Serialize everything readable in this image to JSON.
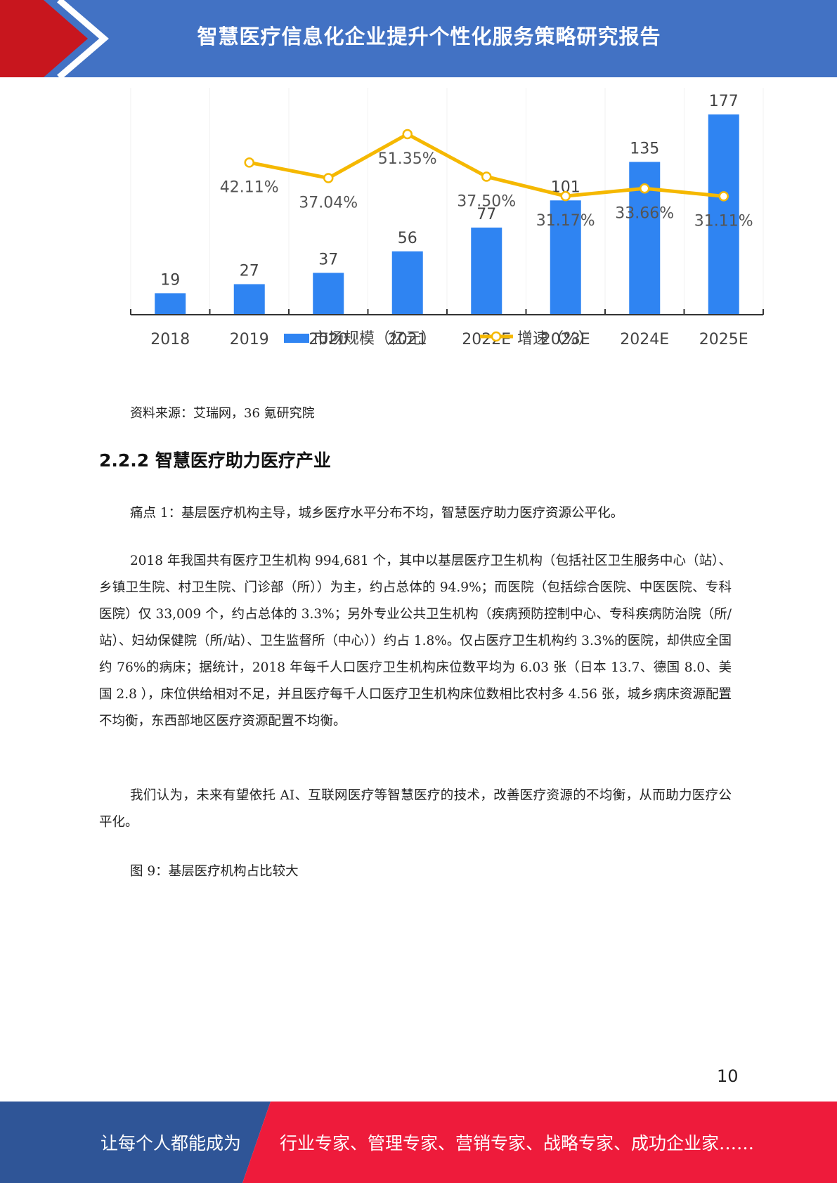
{
  "header": {
    "title": "智慧医疗信息化企业提升个性化服务策略研究报告",
    "bg_color": "#4272c4",
    "accent_color": "#c8161e"
  },
  "chart_data": {
    "type": "bar+line",
    "categories": [
      "2018",
      "2019",
      "2020",
      "2021",
      "2022E",
      "2023E",
      "2024E",
      "2025E"
    ],
    "series": [
      {
        "name": "市场规模（亿元）",
        "type": "bar",
        "color": "#2f84f2",
        "values": [
          19,
          27,
          37,
          56,
          77,
          101,
          135,
          177
        ],
        "labels": [
          "19",
          "27",
          "37",
          "56",
          "77",
          "101",
          "135",
          "177"
        ]
      },
      {
        "name": "增速（%）",
        "type": "line",
        "color": "#f5b800",
        "values": [
          null,
          42.11,
          37.04,
          51.35,
          37.5,
          31.17,
          33.66,
          31.11
        ],
        "labels": [
          "",
          "42.11%",
          "37.04%",
          "51.35%",
          "37.50%",
          "31.17%",
          "33.66%",
          "31.11%"
        ]
      }
    ],
    "ylim": [
      0,
      180
    ],
    "legend_position": "bottom"
  },
  "source": "资料来源：艾瑞网，36 氪研究院",
  "section": {
    "number": "2.2.2",
    "title": "智慧医疗助力医疗产业"
  },
  "paragraphs": [
    "痛点 1：基层医疗机构主导，城乡医疗水平分布不均，智慧医疗助力医疗资源公平化。",
    "2018 年我国共有医疗卫生机构 994,681 个，其中以基层医疗卫生机构（包括社区卫生服务中心（站）、乡镇卫生院、村卫生院、门诊部（所））为主，约占总体的 94.9%；而医院（包括综合医院、中医医院、专科医院）仅 33,009 个，约占总体的 3.3%；另外专业公共卫生机构（疾病预防控制中心、专科疾病防治院（所/站）、妇幼保健院（所/站）、卫生监督所（中心））约占 1.8%。仅占医疗卫生机构约 3.3%的医院，却供应全国约 76%的病床；据统计，2018 年每千人口医疗卫生机构床位数平均为 6.03 张（日本 13.7、德国 8.0、美国 2.8 ），床位供给相对不足，并且医疗每千人口医疗卫生机构床位数相比农村多 4.56 张，城乡病床资源配置不均衡，东西部地区医疗资源配置不均衡。",
    "我们认为，未来有望依托 AI、互联网医疗等智慧医疗的技术，改善医疗资源的不均衡，从而助力医疗公平化。",
    "图 9：基层医疗机构占比较大"
  ],
  "page_number": "10",
  "footer": {
    "left_text": "让每个人都能成为",
    "right_text": "行业专家、管理专家、营销专家、战略专家、成功企业家……",
    "left_color": "#2f5597",
    "right_color": "#ee1b3b"
  }
}
